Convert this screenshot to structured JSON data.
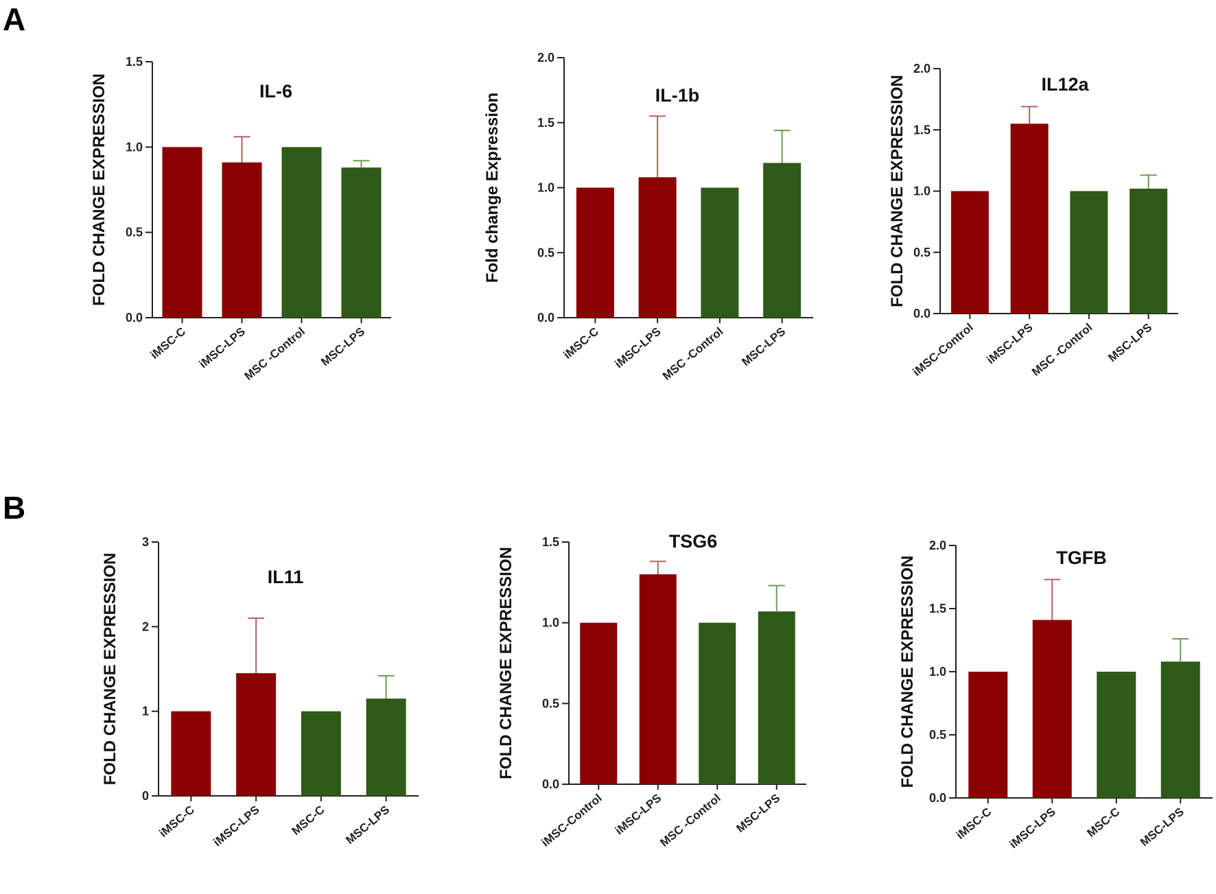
{
  "panels": [
    "A",
    "B"
  ],
  "colors": {
    "imsc": "#8b0000",
    "msc": "#2f5a18",
    "imsc_err": "#b56060",
    "msc_err": "#6e9a52"
  },
  "chart_data": [
    {
      "type": "bar",
      "panel": "A",
      "title": "IL-6",
      "ylabel": "FOLD CHANGE EXPRESSION",
      "ylim": [
        0,
        1.5
      ],
      "yticks": [
        "0.0",
        "0.5",
        "1.0",
        "1.5"
      ],
      "categories": [
        "iMSC-C",
        "iMSC-LPS",
        "MSC -Control",
        "MSC-LPS"
      ],
      "values": [
        1.0,
        0.91,
        1.0,
        0.88
      ],
      "errors": [
        0,
        0.15,
        0,
        0.04
      ],
      "bar_colors": [
        "imsc",
        "imsc",
        "msc",
        "msc"
      ],
      "grid": false,
      "legend": "none"
    },
    {
      "type": "bar",
      "panel": "A",
      "title": "IL-1b",
      "ylabel": "Fold change Expression",
      "ylim": [
        0,
        2.0
      ],
      "yticks": [
        "0.0",
        "0.5",
        "1.0",
        "1.5",
        "2.0"
      ],
      "categories": [
        "iMSC-C",
        "iMSC-LPS",
        "MSC -Control",
        "MSC-LPS"
      ],
      "values": [
        1.0,
        1.08,
        1.0,
        1.19
      ],
      "errors": [
        0,
        0.47,
        0,
        0.25
      ],
      "bar_colors": [
        "imsc",
        "imsc",
        "msc",
        "msc"
      ],
      "grid": false,
      "legend": "none"
    },
    {
      "type": "bar",
      "panel": "A",
      "title": "IL12a",
      "ylabel": "FOLD CHANGE EXPRESSION",
      "ylim": [
        0,
        2.0
      ],
      "yticks": [
        "0.0",
        "0.5",
        "1.0",
        "1.5",
        "2.0"
      ],
      "categories": [
        "iMSC-Control",
        "iMSC-LPS",
        "MSC -Control",
        "MSC-LPS"
      ],
      "values": [
        1.0,
        1.55,
        1.0,
        1.02
      ],
      "errors": [
        0,
        0.14,
        0,
        0.11
      ],
      "bar_colors": [
        "imsc",
        "imsc",
        "msc",
        "msc"
      ],
      "grid": false,
      "legend": "none"
    },
    {
      "type": "bar",
      "panel": "B",
      "title": "IL11",
      "ylabel": "FOLD CHANGE EXPRESSION",
      "ylim": [
        0,
        3
      ],
      "yticks": [
        "0",
        "1",
        "2",
        "3"
      ],
      "categories": [
        "iMSC-C",
        "iMSC-LPS",
        "MSC-C",
        "MSC-LPS"
      ],
      "values": [
        1.0,
        1.45,
        1.0,
        1.15
      ],
      "errors": [
        0,
        0.65,
        0,
        0.27
      ],
      "bar_colors": [
        "imsc",
        "imsc",
        "msc",
        "msc"
      ],
      "grid": false,
      "legend": "none"
    },
    {
      "type": "bar",
      "panel": "B",
      "title": "TSG6",
      "ylabel": "FOLD CHANGE EXPRESSION",
      "ylim": [
        0,
        1.5
      ],
      "yticks": [
        "0.0",
        "0.5",
        "1.0",
        "1.5"
      ],
      "categories": [
        "iMSC-Control",
        "iMSC-LPS",
        "MSC -Control",
        "MSC-LPS"
      ],
      "values": [
        1.0,
        1.3,
        1.0,
        1.07
      ],
      "errors": [
        0,
        0.08,
        0,
        0.16
      ],
      "bar_colors": [
        "imsc",
        "imsc",
        "msc",
        "msc"
      ],
      "grid": false,
      "legend": "none"
    },
    {
      "type": "bar",
      "panel": "B",
      "title": "TGFB",
      "ylabel": "FOLD CHANGE EXPRESSION",
      "ylim": [
        0,
        2.0
      ],
      "yticks": [
        "0.0",
        "0.5",
        "1.0",
        "1.5",
        "2.0"
      ],
      "categories": [
        "iMSC-C",
        "iMSC-LPS",
        "MSC-C",
        "MSC-LPS"
      ],
      "values": [
        1.0,
        1.41,
        1.0,
        1.08
      ],
      "errors": [
        0,
        0.32,
        0,
        0.18
      ],
      "bar_colors": [
        "imsc",
        "imsc",
        "msc",
        "msc"
      ],
      "grid": false,
      "legend": "none"
    }
  ]
}
